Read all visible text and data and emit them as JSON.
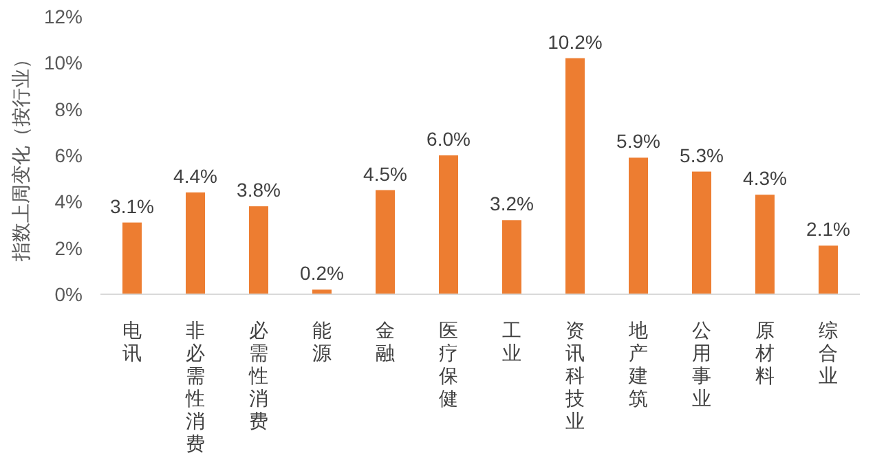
{
  "chart_data": {
    "type": "bar",
    "ylabel": "指数上周变化（按行业）",
    "categories": [
      "电讯",
      "非必需性消费",
      "必需性消费",
      "能源",
      "金融",
      "医疗保健",
      "工业",
      "资讯科技业",
      "地产建筑",
      "公用事业",
      "原材料",
      "综合业"
    ],
    "values": [
      3.1,
      4.4,
      3.8,
      0.2,
      4.5,
      6.0,
      3.2,
      10.2,
      5.9,
      5.3,
      4.3,
      2.1
    ],
    "value_labels": [
      "3.1%",
      "4.4%",
      "3.8%",
      "0.2%",
      "4.5%",
      "6.0%",
      "3.2%",
      "10.2%",
      "5.9%",
      "5.3%",
      "4.3%",
      "2.1%"
    ],
    "color": "#ed7d31",
    "ylim": [
      0,
      12
    ],
    "yticks": [
      {
        "value": 0,
        "label": "0%"
      },
      {
        "value": 2,
        "label": "2%"
      },
      {
        "value": 4,
        "label": "4%"
      },
      {
        "value": 6,
        "label": "6%"
      },
      {
        "value": 8,
        "label": "8%"
      },
      {
        "value": 10,
        "label": "10%"
      },
      {
        "value": 12,
        "label": "12%"
      }
    ],
    "grid": false
  }
}
